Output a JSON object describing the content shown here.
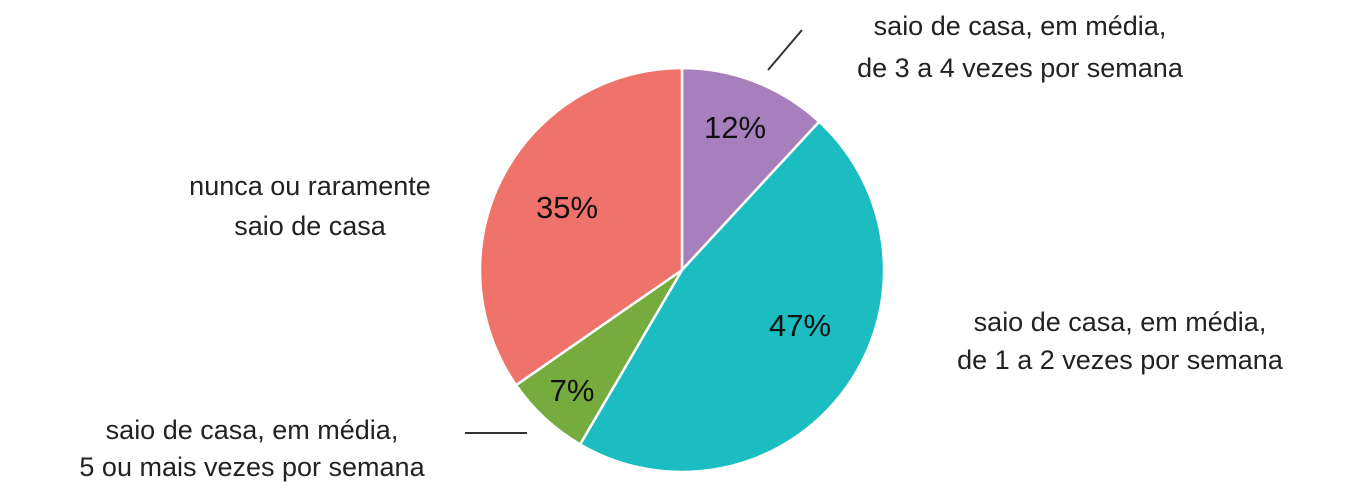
{
  "chart_data": {
    "type": "pie",
    "categories": [
      [
        "saio de casa, em média,",
        "de 3 a 4 vezes por semana"
      ],
      [
        "saio de casa, em média,",
        "de 1 a 2 vezes por semana"
      ],
      [
        "saio de casa, em média,",
        "5 ou mais vezes por semana"
      ],
      [
        "nunca ou raramente",
        "saio de casa"
      ]
    ],
    "values": [
      12,
      47,
      7,
      35
    ],
    "value_labels": [
      "12%",
      "47%",
      "7%",
      "35%"
    ],
    "colors": [
      "#a77fbd",
      "#1bbdc1",
      "#76ac3e",
      "#f0736b"
    ]
  }
}
